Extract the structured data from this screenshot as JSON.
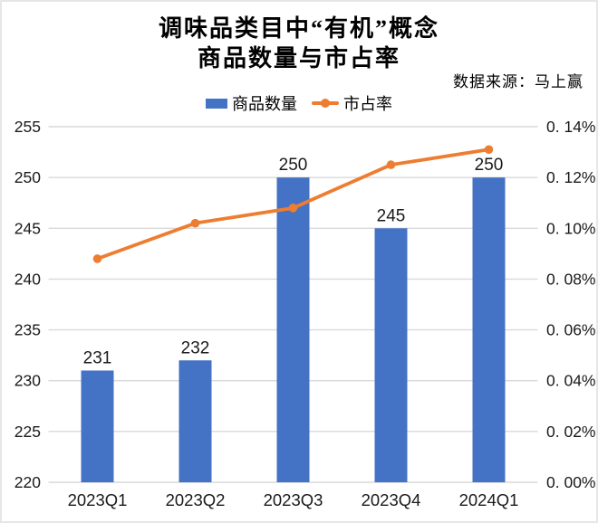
{
  "title": {
    "line1": "调味品类目中“有机”概念",
    "line2": "商品数量与市占率"
  },
  "source": "数据来源：马上赢",
  "legend": {
    "bars_label": "商品数量",
    "line_label": "市占率"
  },
  "colors": {
    "bar": "#4472C4",
    "line": "#ED7D31",
    "grid": "#D9D9D9",
    "text": "#1a1a1a"
  },
  "chart_data": {
    "type": "bar",
    "title": "调味品类目中“有机”概念 商品数量与市占率",
    "categories": [
      "2023Q1",
      "2023Q2",
      "2023Q3",
      "2023Q4",
      "2024Q1"
    ],
    "series": [
      {
        "name": "商品数量",
        "type": "bar",
        "axis": "left",
        "values": [
          231,
          232,
          250,
          245,
          250
        ]
      },
      {
        "name": "市占率",
        "type": "line",
        "axis": "right",
        "values_percent": [
          0.088,
          0.102,
          0.108,
          0.125,
          0.131
        ]
      }
    ],
    "left_axis": {
      "min": 220,
      "max": 255,
      "ticks": [
        "255",
        "250",
        "245",
        "240",
        "235",
        "230",
        "225",
        "220"
      ]
    },
    "right_axis": {
      "min": 0,
      "max": 0.14,
      "ticks": [
        "0. 14%",
        "0. 12%",
        "0. 10%",
        "0. 08%",
        "0. 06%",
        "0. 04%",
        "0. 02%",
        "0. 00%"
      ]
    },
    "grid": "horizontal",
    "legend_position": "top-center",
    "bar_value_labels": [
      231,
      232,
      250,
      245,
      250
    ]
  }
}
